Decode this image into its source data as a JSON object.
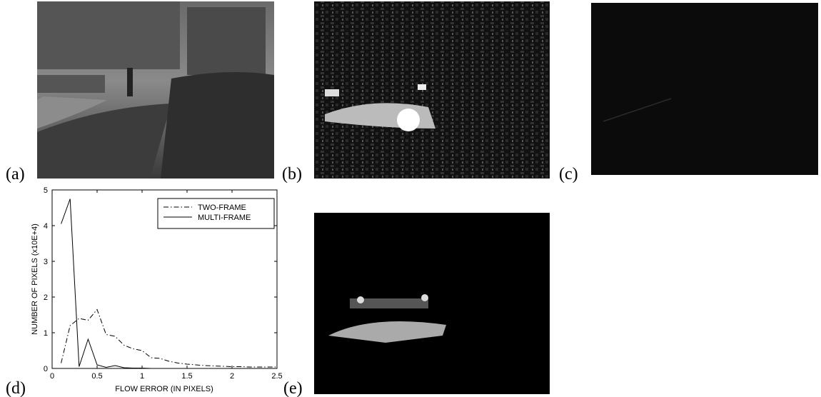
{
  "panel_labels": [
    "(a)",
    "(b)",
    "(c)",
    "(d)",
    "(e)"
  ],
  "chart_data": {
    "type": "line",
    "xlabel": "FLOW ERROR (IN PIXELS)",
    "ylabel": "NUMBER OF PIXELS (x10E+4)",
    "x": [
      0.1,
      0.2,
      0.3,
      0.4,
      0.5,
      0.6,
      0.7,
      0.8,
      0.9,
      1.0,
      1.1,
      1.2,
      1.3,
      1.4,
      1.5,
      1.6,
      1.7,
      1.8,
      1.9,
      2.0,
      2.1,
      2.2,
      2.3,
      2.4,
      2.5
    ],
    "series": [
      {
        "name": "TWO-FRAME",
        "color": "#000000",
        "style": "dash-dot",
        "values": [
          0.15,
          1.2,
          1.4,
          1.35,
          1.65,
          0.95,
          0.9,
          0.65,
          0.55,
          0.5,
          0.3,
          0.28,
          0.2,
          0.15,
          0.12,
          0.1,
          0.08,
          0.07,
          0.06,
          0.05,
          0.05,
          0.04,
          0.04,
          0.04,
          0.04
        ]
      },
      {
        "name": "MULTI-FRAME",
        "color": "#000000",
        "style": "solid",
        "values": [
          4.05,
          4.75,
          0.05,
          0.82,
          0.1,
          0.03,
          0.08,
          0.02,
          0.01,
          0.01,
          0,
          0,
          0,
          0,
          0,
          0,
          0,
          0,
          0,
          0,
          0,
          0,
          0,
          0,
          0
        ]
      }
    ],
    "xlim": [
      0,
      2.5
    ],
    "xticks": [
      0,
      0.5,
      1,
      1.5,
      2,
      2.5
    ],
    "ylim": [
      0,
      5
    ],
    "yticks": [
      0,
      1,
      2,
      3,
      4,
      5
    ],
    "legend": "upper right"
  }
}
